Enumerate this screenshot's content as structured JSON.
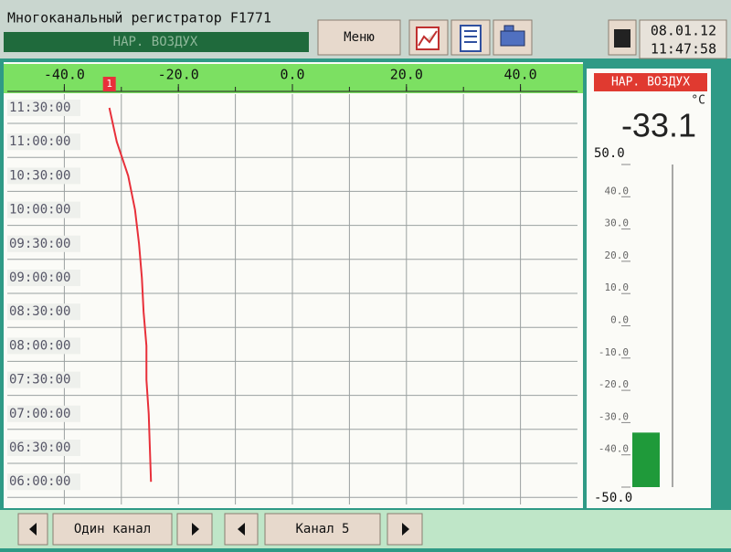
{
  "header": {
    "title": "Многоканальный регистратор F1771",
    "channel": "НАР. ВОЗДУХ",
    "menu": "Меню",
    "date": "08.01.12",
    "time": "11:47:58"
  },
  "chart_data": [
    {
      "type": "line",
      "categories": [
        "11:30:00",
        "11:00:00",
        "10:30:00",
        "10:00:00",
        "09:30:00",
        "09:00:00",
        "08:30:00",
        "08:00:00",
        "07:30:00",
        "07:00:00",
        "06:30:00",
        "06:00:00"
      ],
      "series": [
        {
          "color": "#e8303a",
          "values": [
            -32.1,
            -30.8,
            -28.8,
            -27.6,
            -26.9,
            -26.4,
            -26.1,
            -25.6,
            -25.6,
            -25.2,
            -25.0,
            -24.8
          ]
        }
      ],
      "marker_label": "1",
      "xlim": [
        -50,
        50
      ],
      "xticks": [
        {
          "value": -40,
          "label": "-40.0"
        },
        {
          "value": -20,
          "label": "-20.0"
        },
        {
          "value": 0,
          "label": "0.0"
        },
        {
          "value": 20,
          "label": "20.0"
        },
        {
          "value": 40,
          "label": "40.0"
        }
      ],
      "minor_xticks": [
        -40,
        -30,
        -20,
        -10,
        0,
        10,
        20,
        30,
        40
      ],
      "grid": true
    },
    {
      "type": "bar",
      "title": "НАР. ВОЗДУХ",
      "unit": "°C",
      "values": [
        -33.1
      ],
      "color": "#1f9a3a",
      "ylim": [
        -50,
        50
      ],
      "yticks": [
        {
          "value": -50,
          "label": "-50.0"
        },
        {
          "value": -40,
          "label": "-40.0"
        },
        {
          "value": -30,
          "label": "-30.0"
        },
        {
          "value": -20,
          "label": "-20.0"
        },
        {
          "value": -10,
          "label": "-10.0"
        },
        {
          "value": 0,
          "label": "0.0"
        },
        {
          "value": 10,
          "label": "10.0"
        },
        {
          "value": 20,
          "label": "20.0"
        },
        {
          "value": 30,
          "label": "30.0"
        },
        {
          "value": 40,
          "label": "40.0"
        },
        {
          "value": 50,
          "label": "50.0"
        }
      ]
    }
  ],
  "footer": {
    "mode": "Один канал",
    "channel": "Канал 5"
  }
}
